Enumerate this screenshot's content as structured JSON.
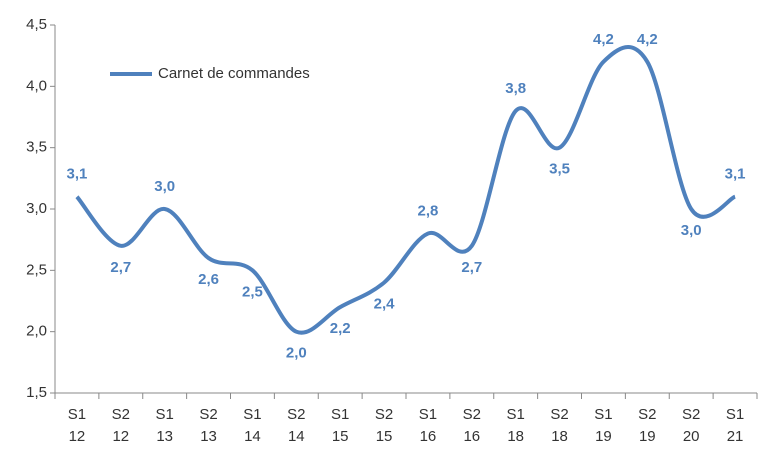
{
  "chart_data": {
    "type": "line",
    "categories": [
      [
        "S1",
        "12"
      ],
      [
        "S2",
        "12"
      ],
      [
        "S1",
        "13"
      ],
      [
        "S2",
        "13"
      ],
      [
        "S1",
        "14"
      ],
      [
        "S2",
        "14"
      ],
      [
        "S1",
        "15"
      ],
      [
        "S2",
        "15"
      ],
      [
        "S1",
        "16"
      ],
      [
        "S2",
        "16"
      ],
      [
        "S1",
        "18"
      ],
      [
        "S2",
        "18"
      ],
      [
        "S1",
        "19"
      ],
      [
        "S2",
        "19"
      ],
      [
        "S2",
        "20"
      ],
      [
        "S1",
        "21"
      ]
    ],
    "series": [
      {
        "name": "Carnet de commandes",
        "color": "#4f81bd",
        "values": [
          3.1,
          2.7,
          3.0,
          2.6,
          2.5,
          2.0,
          2.2,
          2.4,
          2.8,
          2.7,
          3.8,
          3.5,
          4.2,
          4.2,
          3.0,
          3.1
        ],
        "value_labels": [
          "3,1",
          "2,7",
          "3,0",
          "2,6",
          "2,5",
          "2,0",
          "2,2",
          "2,4",
          "2,8",
          "2,7",
          "3,8",
          "3,5",
          "4,2",
          "4,2",
          "3,0",
          "3,1"
        ]
      }
    ],
    "ylim": [
      1.5,
      4.5
    ],
    "yticks": [
      {
        "value": 1.5,
        "label": "1,5"
      },
      {
        "value": 2.0,
        "label": "2,0"
      },
      {
        "value": 2.5,
        "label": "2,5"
      },
      {
        "value": 3.0,
        "label": "3,0"
      },
      {
        "value": 3.5,
        "label": "3,5"
      },
      {
        "value": 4.0,
        "label": "4,0"
      },
      {
        "value": 4.5,
        "label": "4,5"
      }
    ],
    "grid": false,
    "legend": "top-left"
  }
}
